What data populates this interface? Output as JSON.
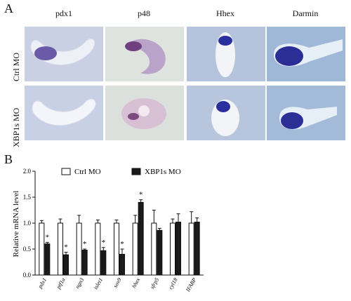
{
  "panel_a": {
    "letter": "A",
    "columns": [
      "pdx1",
      "p48",
      "Hhex",
      "Darmin"
    ],
    "rows": [
      "Ctrl MO",
      "XBP1s MO"
    ]
  },
  "panel_b": {
    "letter": "B"
  },
  "chart_data": {
    "type": "bar",
    "ylabel": "Relative mRNA level",
    "xlabel": "",
    "ylim": [
      0,
      2.0
    ],
    "yticks": [
      "0.0",
      "0.5",
      "1.0",
      "1.5",
      "2.0"
    ],
    "categories": [
      "pdx1",
      "ptf1a",
      "ngn3",
      "islet1",
      "sox9",
      "hhex",
      "sfrp5",
      "cyl18",
      "IFABP"
    ],
    "legend_position": "top",
    "series": [
      {
        "name": "Ctrl MO",
        "color": "#ffffff",
        "values": [
          1.0,
          1.0,
          1.0,
          1.0,
          1.0,
          1.0,
          1.0,
          1.0,
          1.0
        ],
        "errors": [
          0.05,
          0.08,
          0.15,
          0.06,
          0.06,
          0.15,
          0.25,
          0.08,
          0.22
        ]
      },
      {
        "name": "XBP1s MO",
        "color": "#1a1a1a",
        "values": [
          0.6,
          0.39,
          0.48,
          0.47,
          0.4,
          1.4,
          0.86,
          1.02,
          1.02
        ],
        "errors": [
          0.03,
          0.05,
          0.02,
          0.06,
          0.1,
          0.05,
          0.04,
          0.16,
          0.08
        ]
      }
    ],
    "significance_marks": [
      "*",
      "*",
      "*",
      "*",
      "*",
      "*",
      "",
      "",
      ""
    ]
  }
}
